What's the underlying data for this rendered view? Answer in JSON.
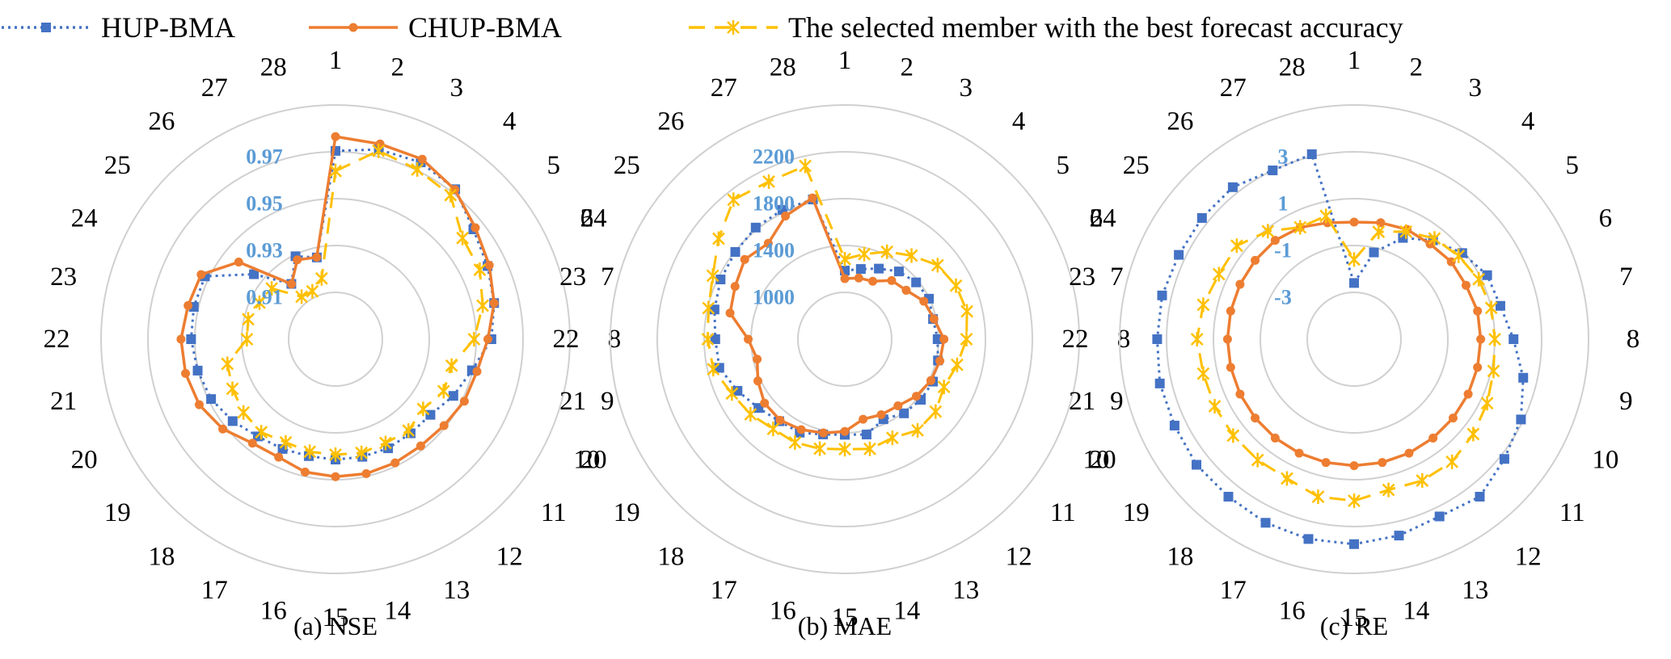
{
  "legend": [
    {
      "label": "HUP-BMA",
      "color": "#4472c4",
      "marker": "square",
      "dash": "dotted"
    },
    {
      "label": "CHUP-BMA",
      "color": "#ed7d31",
      "marker": "circle",
      "dash": "solid"
    },
    {
      "label": "The selected member with the best forecast accuracy",
      "color": "#ffc000",
      "marker": "star",
      "dash": "dashed"
    }
  ],
  "chart_data": [
    {
      "type": "radar",
      "caption": "(a) NSE",
      "categories": [
        "1",
        "2",
        "3",
        "4",
        "5",
        "6",
        "7",
        "8",
        "9",
        "10",
        "11",
        "12",
        "13",
        "14",
        "15",
        "16",
        "17",
        "18",
        "19",
        "20",
        "21",
        "22",
        "23",
        "24",
        "25",
        "26",
        "27",
        "28"
      ],
      "tick_labels": [
        "0.91",
        "0.93",
        "0.95",
        "0.97"
      ],
      "range": [
        0.89,
        0.99
      ],
      "grid": true,
      "series": [
        {
          "name": "HUP-BMA",
          "values": [
            0.9704,
            0.9731,
            0.9738,
            0.9719,
            0.9652,
            0.962,
            0.9594,
            0.9565,
            0.9497,
            0.9458,
            0.9418,
            0.9414,
            0.9417,
            0.9415,
            0.9414,
            0.9412,
            0.942,
            0.9431,
            0.9461,
            0.9489,
            0.9503,
            0.9516,
            0.952,
            0.9518,
            0.9345,
            0.9202,
            0.9293,
            0.9258
          ]
        },
        {
          "name": "CHUP-BMA",
          "values": [
            0.9765,
            0.9755,
            0.9753,
            0.9717,
            0.9663,
            0.9628,
            0.9594,
            0.955,
            0.9519,
            0.951,
            0.9492,
            0.9483,
            0.9486,
            0.9489,
            0.9487,
            0.9482,
            0.9459,
            0.9468,
            0.9515,
            0.9545,
            0.9556,
            0.9559,
            0.9545,
            0.9536,
            0.9428,
            0.9201,
            0.9276,
            0.9259
          ]
        },
        {
          "name": "The selected member with the best forecast accuracy",
          "values": [
            0.9618,
            0.9725,
            0.9704,
            0.9687,
            0.9593,
            0.9583,
            0.9544,
            0.9491,
            0.9408,
            0.9412,
            0.9378,
            0.9399,
            0.9392,
            0.9398,
            0.9393,
            0.9393,
            0.9389,
            0.9408,
            0.9402,
            0.9388,
            0.9373,
            0.9278,
            0.9282,
            0.926,
            0.9248,
            0.9132,
            0.9127,
            0.9166
          ]
        }
      ]
    },
    {
      "type": "radar",
      "caption": "(b) MAE",
      "categories": [
        "1",
        "2",
        "3",
        "4",
        "5",
        "6",
        "7",
        "8",
        "9",
        "10",
        "11",
        "12",
        "13",
        "14",
        "15",
        "16",
        "17",
        "18",
        "19",
        "20",
        "21",
        "22",
        "23",
        "24",
        "25",
        "26",
        "27",
        "28"
      ],
      "tick_labels": [
        "1000",
        "1400",
        "1800",
        "2200"
      ],
      "range": [
        600,
        2600
      ],
      "grid": true,
      "series": [
        {
          "name": "HUP-BMA",
          "values": [
            1186,
            1215,
            1269,
            1340,
            1378,
            1397,
            1372,
            1392,
            1415,
            1435,
            1430,
            1410,
            1359,
            1435,
            1416,
            1434,
            1486,
            1496,
            1542,
            1616,
            1698,
            1705,
            1740,
            1776,
            1795,
            1819,
            1826,
            1824
          ]
        },
        {
          "name": "CHUP-BMA",
          "values": [
            1117,
            1136,
            1149,
            1241,
            1270,
            1348,
            1380,
            1446,
            1432,
            1415,
            1381,
            1328,
            1316,
            1301,
            1388,
            1421,
            1457,
            1485,
            1476,
            1423,
            1367,
            1424,
            1604,
            1639,
            1692,
            1647,
            1767,
            1837
          ]
        },
        {
          "name": "The selected member with the best forecast accuracy",
          "values": [
            1284,
            1345,
            1429,
            1513,
            1613,
            1653,
            1669,
            1638,
            1583,
            1539,
            1591,
            1596,
            1536,
            1561,
            1540,
            1559,
            1579,
            1580,
            1629,
            1669,
            1751,
            1769,
            1793,
            1850,
            1977,
            2123,
            2094,
            2117
          ]
        }
      ]
    },
    {
      "type": "radar",
      "caption": "(c) RE",
      "categories": [
        "1",
        "2",
        "3",
        "4",
        "5",
        "6",
        "7",
        "8",
        "9",
        "10",
        "11",
        "12",
        "13",
        "14",
        "15",
        "16",
        "17",
        "18",
        "19",
        "20",
        "21",
        "22",
        "23",
        "24",
        "25",
        "26",
        "27",
        "28"
      ],
      "tick_labels": [
        "-3",
        "-1",
        "1",
        "3"
      ],
      "range": [
        -5,
        5
      ],
      "grid": true,
      "series": [
        {
          "name": "HUP-BMA",
          "values": [
            -2.6,
            -1.2,
            -0.2,
            0.4,
            0.9,
            1.3,
            1.4,
            1.8,
            2.4,
            2.9,
            3.2,
            3.6,
            3.4,
            3.6,
            3.75,
            3.75,
            3.7,
            3.6,
            3.6,
            3.5,
            3.5,
            3.4,
            3.4,
            3.3,
            3.3,
            3.3,
            3.0,
            3.1
          ]
        },
        {
          "name": "CHUP-BMA",
          "values": [
            0.0,
            0.1,
            0.2,
            0.2,
            0.3,
            0.3,
            0.4,
            0.4,
            0.4,
            0.4,
            0.4,
            0.4,
            0.4,
            0.4,
            0.4,
            0.4,
            0.4,
            0.4,
            0.4,
            0.4,
            0.4,
            0.4,
            0.4,
            0.4,
            0.4,
            0.4,
            0.3,
            0.1
          ]
        },
        {
          "name": "The selected member with the best forecast accuracy",
          "values": [
            -1.6,
            -0.3,
            0.1,
            0.5,
            0.7,
            0.9,
            1.0,
            1.0,
            1.1,
            1.3,
            1.5,
            1.7,
            1.7,
            1.6,
            1.9,
            1.9,
            1.6,
            1.6,
            1.6,
            1.6,
            1.6,
            1.7,
            1.6,
            1.4,
            1.4,
            0.9,
            0.3,
            0.4
          ]
        }
      ]
    }
  ]
}
